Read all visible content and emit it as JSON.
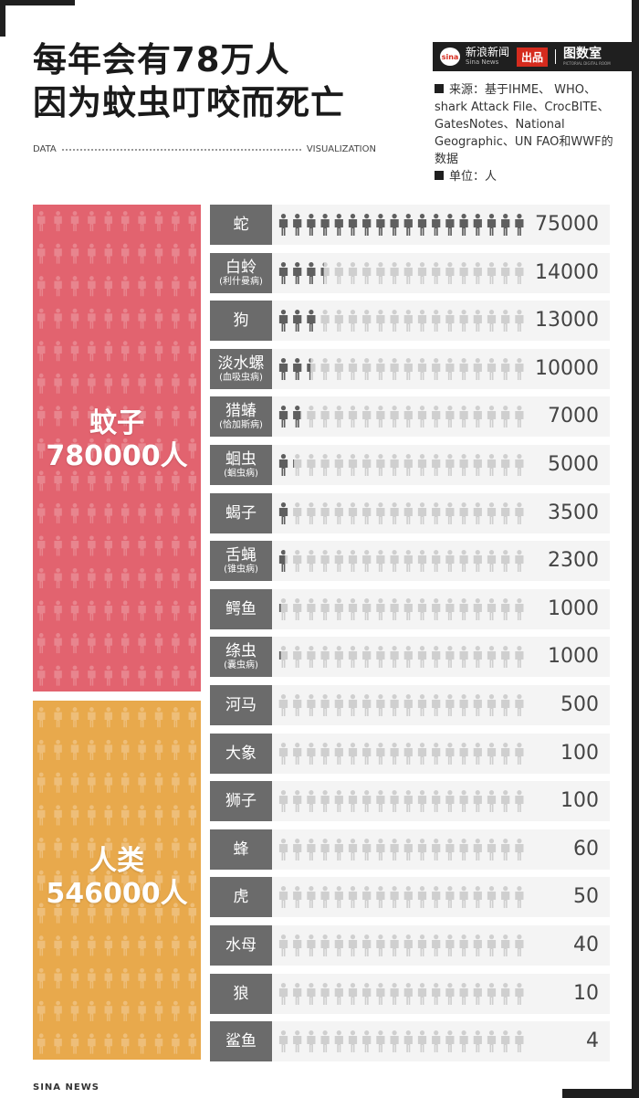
{
  "title_line1": "每年会有78万人",
  "title_line2": "因为蚊虫叮咬而死亡",
  "data_label": "DATA",
  "viz_label": "VISUALIZATION",
  "brand": {
    "name": "新浪新闻",
    "sub": "Sina News",
    "chupin": "出品",
    "lab": "图数室",
    "lab_sub": "PICTORIAL DIGITAL ROOM",
    "logo_text": "sina"
  },
  "source_text": "来源：基于IHME、 WHO、shark Attack File、CrocBITE、GatesNotes、National Geographic、UN FAO和WWF的数据",
  "unit_text": "单位：人",
  "footer": "SINA  NEWS",
  "colors": {
    "mosquito": "#e2636f",
    "human": "#e8a94c",
    "label_bg": "#6b6b6b",
    "icon_filled": "#5f5f5f",
    "icon_empty": "#cfcfcf",
    "row_bg": "#f4f4f4"
  },
  "mosquito_block": {
    "name": "蚊子",
    "value_text": "780000人",
    "value": 780000
  },
  "human_block": {
    "name": "人类",
    "value_text": "546000人",
    "value": 546000
  },
  "chart_data": {
    "type": "bar",
    "title": "每年会有78万人因为蚊虫叮咬而死亡",
    "unit": "人",
    "icons_per_row": 18,
    "max_value": 75000,
    "rows": [
      {
        "name": "蛇",
        "sub": "",
        "value": 75000,
        "label": "75000"
      },
      {
        "name": "白蛉",
        "sub": "(利什曼病)",
        "value": 14000,
        "label": "14000"
      },
      {
        "name": "狗",
        "sub": "",
        "value": 13000,
        "label": "13000"
      },
      {
        "name": "淡水螺",
        "sub": "(血吸虫病)",
        "value": 10000,
        "label": "10000"
      },
      {
        "name": "猎蝽",
        "sub": "(恰加斯病)",
        "value": 7000,
        "label": "7000"
      },
      {
        "name": "蛔虫",
        "sub": "(蛔虫病)",
        "value": 5000,
        "label": "5000"
      },
      {
        "name": "蝎子",
        "sub": "",
        "value": 3500,
        "label": "3500"
      },
      {
        "name": "舌蝇",
        "sub": "(锥虫病)",
        "value": 2300,
        "label": "2300"
      },
      {
        "name": "鳄鱼",
        "sub": "",
        "value": 1000,
        "label": "1000"
      },
      {
        "name": "绦虫",
        "sub": "(囊虫病)",
        "value": 1000,
        "label": "1000"
      },
      {
        "name": "河马",
        "sub": "",
        "value": 500,
        "label": "500"
      },
      {
        "name": "大象",
        "sub": "",
        "value": 100,
        "label": "100"
      },
      {
        "name": "狮子",
        "sub": "",
        "value": 100,
        "label": "100"
      },
      {
        "name": "蜂",
        "sub": "",
        "value": 60,
        "label": "60"
      },
      {
        "name": "虎",
        "sub": "",
        "value": 50,
        "label": "50"
      },
      {
        "name": "水母",
        "sub": "",
        "value": 40,
        "label": "40"
      },
      {
        "name": "狼",
        "sub": "",
        "value": 10,
        "label": "10"
      },
      {
        "name": "鲨鱼",
        "sub": "",
        "value": 4,
        "label": "4"
      }
    ]
  }
}
